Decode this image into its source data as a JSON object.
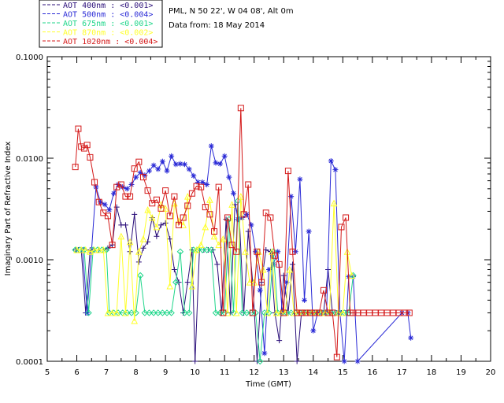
{
  "info": {
    "site": "PML, N 50 22', W 04 08', Alt 0m",
    "date": "Data from: 18 May 2014"
  },
  "chart_data": {
    "type": "line",
    "xlabel": "Time (GMT)",
    "ylabel": "Imaginary Part of Refractive Index",
    "xlim": [
      5,
      20
    ],
    "ylim": [
      0.0001,
      0.1
    ],
    "y_scale": "log",
    "x_ticks": [
      "5",
      "6",
      "7",
      "8",
      "9",
      "10",
      "11",
      "12",
      "13",
      "14",
      "15",
      "16",
      "17",
      "18",
      "19",
      "20"
    ],
    "y_ticks": [
      {
        "value": 0.0001,
        "label": "0.0001"
      },
      {
        "value": 0.001,
        "label": "0.0010"
      },
      {
        "value": 0.01,
        "label": "0.0100"
      },
      {
        "value": 0.1,
        "label": "0.1000"
      }
    ],
    "legend_position": "top-left",
    "series": [
      {
        "name": "AOT  400nm : <0.001>",
        "color": "#2b0f7a",
        "marker": "plus",
        "x": [
          5.95,
          6.05,
          6.15,
          6.3,
          6.45,
          6.6,
          6.75,
          6.9,
          7.05,
          7.2,
          7.35,
          7.5,
          7.65,
          7.8,
          7.95,
          8.1,
          8.25,
          8.4,
          8.55,
          8.7,
          8.85,
          9.0,
          9.15,
          9.3,
          9.45,
          9.6,
          9.75,
          9.9,
          10.0,
          10.15,
          10.3,
          10.45,
          10.6,
          10.75,
          10.9,
          11.05,
          11.2,
          11.35,
          11.5,
          11.65,
          11.8,
          11.95,
          12.1,
          12.25,
          12.4,
          12.55,
          12.7,
          12.85,
          13.0,
          13.15,
          13.3,
          13.45,
          13.6,
          13.75,
          13.9,
          14.05,
          14.2,
          14.35,
          14.5,
          14.65,
          14.8,
          14.95,
          15.1,
          15.25
        ],
        "values": [
          0.00125,
          0.00125,
          0.00125,
          0.0003,
          0.00125,
          0.00125,
          0.00125,
          0.00125,
          0.0013,
          0.0014,
          0.0033,
          0.0022,
          0.0022,
          0.0012,
          0.0028,
          0.00095,
          0.0013,
          0.0015,
          0.0026,
          0.0017,
          0.0022,
          0.0023,
          0.0016,
          0.0008,
          0.0006,
          0.0003,
          0.0006,
          0.00125,
          0.0001,
          0.00125,
          0.00125,
          0.00125,
          0.00125,
          0.0009,
          0.0003,
          0.0025,
          0.0003,
          0.0035,
          0.0025,
          0.0003,
          0.0019,
          0.0006,
          0.0001,
          0.0006,
          0.00125,
          0.0012,
          0.0003,
          0.00016,
          0.0007,
          0.0003,
          0.0009,
          0.0001,
          0.0003,
          0.0003,
          0.0003,
          0.0003,
          0.0003,
          0.0003,
          0.0008,
          0.0003,
          0.0003,
          0.0003,
          0.0003,
          0.0003
        ]
      },
      {
        "name": "AOT  500nm : <0.004>",
        "color": "#2a2ad6",
        "marker": "asterisk",
        "x": [
          6.0,
          6.2,
          6.35,
          6.5,
          6.65,
          6.8,
          6.95,
          7.1,
          7.25,
          7.4,
          7.55,
          7.7,
          7.85,
          8.0,
          8.15,
          8.3,
          8.45,
          8.6,
          8.75,
          8.9,
          9.05,
          9.2,
          9.35,
          9.5,
          9.65,
          9.8,
          9.95,
          10.1,
          10.25,
          10.4,
          10.55,
          10.7,
          10.85,
          11.0,
          11.15,
          11.3,
          11.45,
          11.6,
          11.75,
          11.9,
          12.05,
          12.2,
          12.35,
          12.5,
          12.65,
          12.8,
          12.95,
          13.1,
          13.25,
          13.4,
          13.55,
          13.7,
          13.85,
          14.0,
          14.15,
          14.3,
          14.45,
          14.6,
          14.75,
          14.9,
          15.05,
          15.2,
          15.35,
          15.5,
          17.0,
          17.2,
          17.3
        ],
        "values": [
          0.00125,
          0.00125,
          0.0003,
          0.00125,
          0.0052,
          0.0037,
          0.0035,
          0.0031,
          0.0045,
          0.0055,
          0.0052,
          0.005,
          0.0055,
          0.0065,
          0.0072,
          0.0068,
          0.0075,
          0.0085,
          0.0078,
          0.0093,
          0.0075,
          0.0105,
          0.0087,
          0.0088,
          0.0087,
          0.0078,
          0.0067,
          0.0058,
          0.0058,
          0.0055,
          0.0132,
          0.009,
          0.0088,
          0.0105,
          0.0065,
          0.0045,
          0.0025,
          0.0026,
          0.0028,
          0.0022,
          0.0012,
          0.0005,
          0.00012,
          0.0008,
          0.0009,
          0.0012,
          0.0003,
          0.0006,
          0.0042,
          0.0012,
          0.0062,
          0.0004,
          0.0019,
          0.0002,
          0.0003,
          0.0003,
          0.0003,
          0.0094,
          0.0077,
          0.0003,
          0.0001,
          0.00068,
          0.00068,
          0.0001,
          0.0003,
          0.0003,
          0.00017
        ]
      },
      {
        "name": "AOT  675nm : <0.001>",
        "color": "#1fd68a",
        "marker": "diamond",
        "x": [
          5.95,
          6.1,
          6.25,
          6.4,
          6.55,
          6.7,
          6.85,
          7.0,
          7.1,
          7.25,
          7.4,
          7.55,
          7.7,
          7.85,
          8.0,
          8.15,
          8.3,
          8.45,
          8.6,
          8.75,
          8.9,
          9.05,
          9.2,
          9.35,
          9.5,
          9.65,
          9.8,
          9.95,
          10.1,
          10.25,
          10.4,
          10.55,
          10.7,
          10.85,
          11.0,
          11.15,
          11.3,
          11.45,
          11.6,
          11.75,
          11.9,
          12.05,
          12.2,
          12.35,
          12.5,
          12.65,
          12.8,
          12.95,
          13.1,
          13.25,
          13.4,
          13.55,
          13.7,
          13.85,
          14.0,
          14.15,
          14.3,
          14.45,
          14.6,
          14.75,
          14.9,
          15.05,
          15.2,
          15.35
        ],
        "values": [
          0.00125,
          0.00125,
          0.00125,
          0.0003,
          0.00125,
          0.00125,
          0.00125,
          0.00125,
          0.0003,
          0.0003,
          0.0003,
          0.0003,
          0.0003,
          0.0003,
          0.0003,
          0.0007,
          0.0003,
          0.0003,
          0.0003,
          0.0003,
          0.0003,
          0.0003,
          0.0003,
          0.0006,
          0.0012,
          0.0003,
          0.0003,
          0.00125,
          0.00125,
          0.00125,
          0.00125,
          0.00125,
          0.0003,
          0.0003,
          0.0003,
          0.0025,
          0.0003,
          0.0038,
          0.0003,
          0.0003,
          0.0003,
          0.0003,
          0.0001,
          0.0003,
          0.0003,
          0.0012,
          0.0003,
          0.0003,
          0.0003,
          0.0003,
          0.0003,
          0.0003,
          0.0003,
          0.0003,
          0.0003,
          0.0003,
          0.0003,
          0.0003,
          0.0003,
          0.0003,
          0.0003,
          0.0003,
          0.0003,
          0.0007
        ]
      },
      {
        "name": "AOT  870nm : <0.002>",
        "color": "#ffff2a",
        "marker": "triangle",
        "x": [
          6.0,
          6.15,
          6.3,
          6.45,
          6.6,
          6.75,
          6.9,
          7.05,
          7.2,
          7.35,
          7.5,
          7.65,
          7.8,
          7.95,
          8.1,
          8.25,
          8.4,
          8.55,
          8.7,
          8.85,
          9.0,
          9.15,
          9.3,
          9.45,
          9.6,
          9.75,
          9.9,
          10.05,
          10.2,
          10.35,
          10.5,
          10.65,
          10.8,
          10.95,
          11.1,
          11.25,
          11.4,
          11.55,
          11.7,
          11.85,
          12.0,
          12.15,
          12.3,
          12.45,
          12.6,
          12.75,
          12.9,
          13.05,
          13.2,
          13.35,
          13.5,
          13.65,
          13.8,
          13.95,
          14.1,
          14.25,
          14.4,
          14.55,
          14.7,
          14.85,
          15.0,
          15.15,
          15.3
        ],
        "values": [
          0.00125,
          0.00125,
          0.00125,
          0.0012,
          0.00125,
          0.00125,
          0.00125,
          0.0003,
          0.0003,
          0.0003,
          0.0017,
          0.0003,
          0.0015,
          0.00025,
          0.0012,
          0.0016,
          0.0031,
          0.0026,
          0.0021,
          0.0035,
          0.0032,
          0.00055,
          0.0036,
          0.0024,
          0.0022,
          0.0042,
          0.00055,
          0.00125,
          0.0014,
          0.0021,
          0.0039,
          0.0017,
          0.0014,
          0.0016,
          0.0003,
          0.0035,
          0.0003,
          0.0042,
          0.0012,
          0.0006,
          0.0006,
          0.0012,
          0.0008,
          0.0003,
          0.0012,
          0.0003,
          0.0003,
          0.0003,
          0.0008,
          0.0003,
          0.0003,
          0.0003,
          0.0003,
          0.0003,
          0.0003,
          0.0003,
          0.0003,
          0.0003,
          0.0036,
          0.0003,
          0.0003,
          0.0012,
          0.0007
        ]
      },
      {
        "name": "AOT 1020nm : <0.004>",
        "color": "#d41a1a",
        "marker": "square",
        "x": [
          5.95,
          6.05,
          6.15,
          6.25,
          6.35,
          6.45,
          6.6,
          6.75,
          6.9,
          7.05,
          7.2,
          7.35,
          7.5,
          7.65,
          7.8,
          7.95,
          8.1,
          8.25,
          8.4,
          8.55,
          8.7,
          8.85,
          9.0,
          9.15,
          9.3,
          9.45,
          9.6,
          9.75,
          9.9,
          10.05,
          10.2,
          10.35,
          10.5,
          10.65,
          10.8,
          10.95,
          11.1,
          11.25,
          11.4,
          11.55,
          11.65,
          11.8,
          11.95,
          12.1,
          12.25,
          12.4,
          12.55,
          12.7,
          12.85,
          13.0,
          13.15,
          13.3,
          13.45,
          13.6,
          13.75,
          13.9,
          14.05,
          14.2,
          14.35,
          14.5,
          14.65,
          14.8,
          14.95,
          15.1,
          15.25,
          15.35,
          15.5,
          15.7,
          15.9,
          16.1,
          16.3,
          16.5,
          16.7,
          16.9,
          17.1,
          17.25
        ],
        "values": [
          0.0082,
          0.0195,
          0.013,
          0.0125,
          0.0135,
          0.0102,
          0.0058,
          0.0037,
          0.0029,
          0.0027,
          0.0014,
          0.0052,
          0.0055,
          0.0042,
          0.0042,
          0.0079,
          0.0092,
          0.0065,
          0.0048,
          0.0036,
          0.0039,
          0.0032,
          0.0048,
          0.0027,
          0.0042,
          0.0022,
          0.0026,
          0.0034,
          0.0045,
          0.0053,
          0.0052,
          0.0033,
          0.0028,
          0.0019,
          0.0052,
          0.0003,
          0.0026,
          0.0014,
          0.0012,
          0.0312,
          0.0028,
          0.0055,
          0.0003,
          0.0012,
          0.0006,
          0.0029,
          0.0026,
          0.0011,
          0.0009,
          0.0003,
          0.0075,
          0.0012,
          0.0003,
          0.0003,
          0.0003,
          0.0003,
          0.0003,
          0.0003,
          0.0005,
          0.0003,
          0.0003,
          0.00011,
          0.0021,
          0.0026,
          0.0003,
          0.0003,
          0.0003,
          0.0003,
          0.0003,
          0.0003,
          0.0003,
          0.0003,
          0.0003,
          0.0003,
          0.0003,
          0.0003
        ]
      }
    ]
  }
}
